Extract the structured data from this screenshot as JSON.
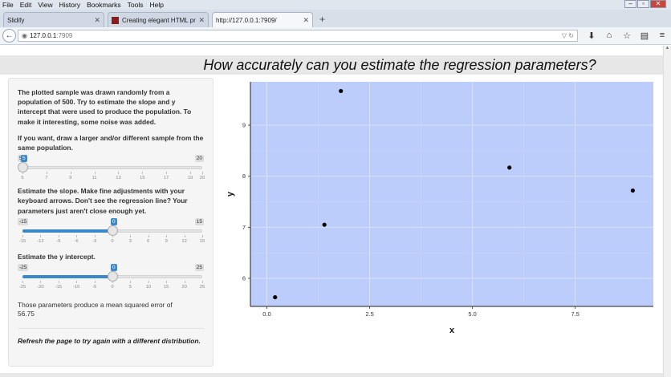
{
  "menu": [
    "File",
    "Edit",
    "View",
    "History",
    "Bookmarks",
    "Tools",
    "Help"
  ],
  "tabs": [
    {
      "label": "Slidify",
      "active": false
    },
    {
      "label": "Creating elegant HTML pre...",
      "active": false
    },
    {
      "label": "http://127.0.0.1:7909/",
      "active": true
    }
  ],
  "url": {
    "host": "127.0.0.1",
    "port": ":7909"
  },
  "page": {
    "title": "How accurately can you estimate the regression parameters?",
    "intro": "The plotted sample was drawn randomly from a population of 500. Try to estimate the slope and y intercept that were used to produce the population. To make it interesting, some noise was added.",
    "sample_label": "If you want, draw a larger and/or different sample from the same population.",
    "slope_label": "Estimate the slope. Make fine adjustments with your keyboard arrows. Don't see the regression line? Your parameters just aren't close enough yet.",
    "intercept_label": "Estimate the y intercept.",
    "mse_text": "Those parameters produce a mean squared error of",
    "mse_value": "56.75",
    "refresh_text": "Refresh the page to try again with a different distribution."
  },
  "sliders": {
    "sample": {
      "min": 5,
      "max": 20,
      "value": 5,
      "min_label": "5",
      "max_label": "20",
      "value_label": "5",
      "ticks": [
        "5",
        "7",
        "9",
        "11",
        "13",
        "15",
        "17",
        "19",
        "20"
      ]
    },
    "slope": {
      "min": -15,
      "max": 15,
      "value": 0,
      "min_label": "-15",
      "max_label": "15",
      "value_label": "0",
      "ticks": [
        "-15",
        "-12",
        "-9",
        "-6",
        "-3",
        "0",
        "3",
        "6",
        "9",
        "12",
        "15"
      ]
    },
    "intercept": {
      "min": -25,
      "max": 25,
      "value": 0,
      "min_label": "-25",
      "max_label": "25",
      "value_label": "0",
      "ticks": [
        "-25",
        "-20",
        "-15",
        "-10",
        "-5",
        "0",
        "5",
        "10",
        "15",
        "20",
        "25"
      ]
    }
  },
  "colors": {
    "plot_bg": "#bccdfb",
    "accent": "#3a88c9"
  },
  "chart_data": {
    "type": "scatter",
    "xlabel": "x",
    "ylabel": "y",
    "xlim": [
      -0.4,
      9.4
    ],
    "ylim": [
      5.45,
      9.85
    ],
    "xticks": [
      0.0,
      2.5,
      5.0,
      7.5
    ],
    "xtick_labels": [
      "0.0",
      "2.5",
      "5.0",
      "7.5"
    ],
    "yticks": [
      6,
      7,
      8,
      9
    ],
    "ytick_labels": [
      "6",
      "7",
      "8",
      "9"
    ],
    "grid": true,
    "points": [
      {
        "x": 0.2,
        "y": 5.63
      },
      {
        "x": 1.4,
        "y": 7.05
      },
      {
        "x": 1.8,
        "y": 9.67
      },
      {
        "x": 5.9,
        "y": 8.17
      },
      {
        "x": 8.9,
        "y": 7.72
      }
    ]
  }
}
